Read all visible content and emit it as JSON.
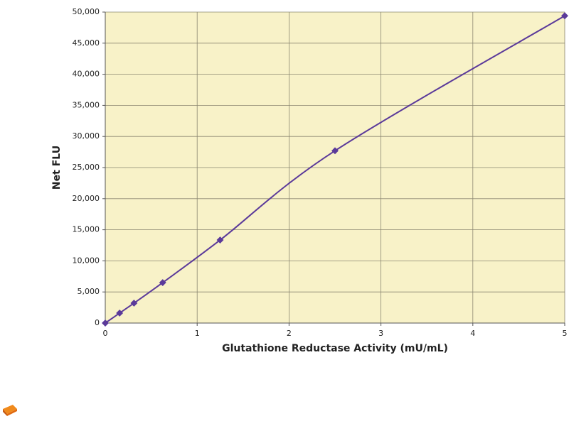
{
  "chart_data": {
    "type": "line",
    "x_label": "Glutathione Reductase Activity (mU/mL)",
    "y_label": "Net FLU",
    "x": [
      0,
      0.156,
      0.3125,
      0.625,
      1.25,
      2.5,
      5
    ],
    "series": [
      {
        "name": "Net FLU",
        "color": "#5b3a9a",
        "values": [
          0,
          1600,
          3200,
          6500,
          13350,
          27700,
          49400
        ]
      }
    ],
    "xlim": [
      0,
      5
    ],
    "xticks": [
      0,
      1,
      2,
      3,
      4,
      5
    ],
    "ylim": [
      0,
      50000
    ],
    "yticks": [
      0,
      {
        "value": 5000,
        "label": "5,000"
      },
      {
        "value": 10000,
        "label": "10,000"
      },
      {
        "value": 15000,
        "label": "15,000"
      },
      {
        "value": 20000,
        "label": "20,000"
      },
      {
        "value": 25000,
        "label": "25,000"
      },
      {
        "value": 30000,
        "label": "30,000"
      },
      {
        "value": 35000,
        "label": "35,000"
      },
      {
        "value": 40000,
        "label": "40,000"
      },
      {
        "value": 45000,
        "label": "45,000"
      },
      {
        "value": 50000,
        "label": "50,000"
      }
    ],
    "grid": true,
    "background": "#f8f2c8"
  }
}
